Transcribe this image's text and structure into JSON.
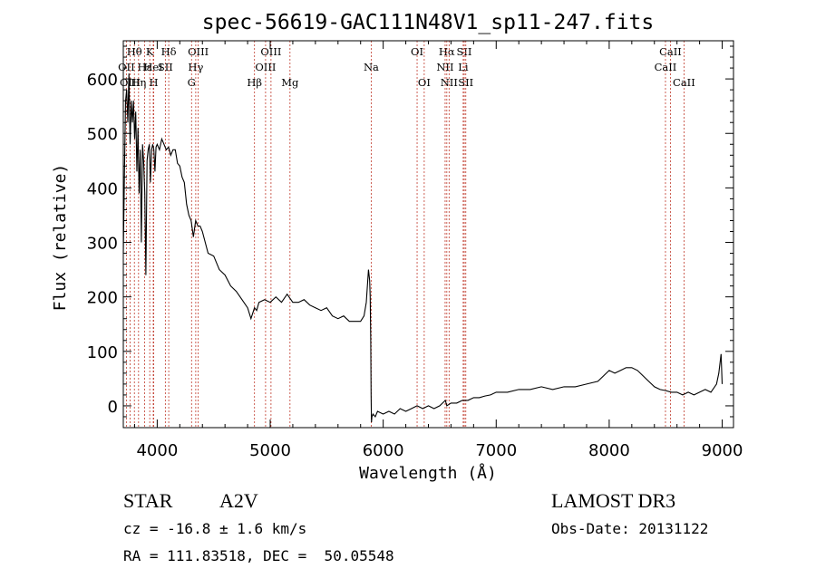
{
  "chart_data": {
    "type": "line",
    "title": "spec-56619-GAC111N48V1_sp11-247.fits",
    "xlabel": "Wavelength (Å)",
    "ylabel": "Flux (relative)",
    "xlim": [
      3700,
      9100
    ],
    "ylim": [
      -40,
      670
    ],
    "xticks": [
      4000,
      5000,
      6000,
      7000,
      8000,
      9000
    ],
    "yticks": [
      0,
      100,
      200,
      300,
      400,
      500,
      600
    ],
    "series": [
      {
        "name": "flux",
        "x": [
          3700,
          3710,
          3720,
          3730,
          3740,
          3750,
          3760,
          3770,
          3780,
          3790,
          3800,
          3810,
          3820,
          3830,
          3840,
          3850,
          3860,
          3870,
          3880,
          3890,
          3900,
          3910,
          3920,
          3930,
          3940,
          3950,
          3960,
          3970,
          3980,
          3990,
          4000,
          4020,
          4040,
          4060,
          4080,
          4100,
          4120,
          4140,
          4160,
          4180,
          4200,
          4220,
          4240,
          4260,
          4280,
          4300,
          4320,
          4340,
          4360,
          4380,
          4400,
          4450,
          4500,
          4550,
          4600,
          4650,
          4700,
          4750,
          4800,
          4830,
          4861,
          4880,
          4900,
          4950,
          5000,
          5050,
          5100,
          5150,
          5200,
          5250,
          5300,
          5350,
          5400,
          5450,
          5500,
          5550,
          5600,
          5650,
          5700,
          5750,
          5800,
          5830,
          5850,
          5870,
          5880,
          5885,
          5890,
          5893,
          5896,
          5900,
          5910,
          5930,
          5950,
          6000,
          6050,
          6100,
          6150,
          6200,
          6250,
          6300,
          6350,
          6400,
          6450,
          6500,
          6550,
          6563,
          6600,
          6650,
          6700,
          6750,
          6800,
          6850,
          6900,
          6950,
          7000,
          7100,
          7200,
          7300,
          7400,
          7500,
          7600,
          7700,
          7800,
          7900,
          8000,
          8050,
          8100,
          8150,
          8200,
          8250,
          8300,
          8350,
          8400,
          8450,
          8500,
          8550,
          8600,
          8650,
          8700,
          8750,
          8800,
          8850,
          8900,
          8950,
          8970,
          8990,
          9000
        ],
        "y": [
          280,
          420,
          560,
          580,
          520,
          610,
          480,
          560,
          520,
          560,
          490,
          540,
          430,
          510,
          390,
          470,
          300,
          480,
          450,
          390,
          240,
          450,
          470,
          480,
          410,
          470,
          480,
          470,
          430,
          475,
          480,
          470,
          490,
          480,
          470,
          475,
          460,
          470,
          470,
          445,
          440,
          420,
          410,
          370,
          350,
          340,
          310,
          340,
          330,
          330,
          320,
          280,
          275,
          250,
          240,
          220,
          210,
          195,
          180,
          160,
          180,
          175,
          190,
          195,
          190,
          200,
          190,
          205,
          190,
          190,
          195,
          185,
          180,
          175,
          180,
          165,
          160,
          165,
          155,
          155,
          155,
          165,
          190,
          250,
          230,
          200,
          120,
          20,
          -30,
          -20,
          -15,
          -20,
          -10,
          -15,
          -10,
          -15,
          -5,
          -10,
          -5,
          0,
          -5,
          0,
          -5,
          0,
          10,
          0,
          5,
          5,
          10,
          10,
          15,
          15,
          18,
          20,
          25,
          25,
          30,
          30,
          35,
          30,
          35,
          35,
          40,
          45,
          65,
          60,
          65,
          70,
          70,
          65,
          55,
          45,
          35,
          30,
          28,
          25,
          25,
          20,
          25,
          20,
          25,
          30,
          25,
          40,
          60,
          95,
          40
        ]
      }
    ],
    "line_markers": [
      {
        "label": "Hθ",
        "x": 3798,
        "row": 1
      },
      {
        "label": "OII",
        "x": 3727,
        "row": 2
      },
      {
        "label": "OIII",
        "x": 3760,
        "row": 3
      },
      {
        "label": "Hε",
        "x": 3889,
        "row": 2
      },
      {
        "label": "Hη",
        "x": 3835,
        "row": 3
      },
      {
        "label": "K",
        "x": 3934,
        "row": 1
      },
      {
        "label": "H",
        "x": 3969,
        "row": 3
      },
      {
        "label": "HeI",
        "x": 3965,
        "row": 2
      },
      {
        "label": "Hδ",
        "x": 4102,
        "row": 1
      },
      {
        "label": "SII",
        "x": 4072,
        "row": 2
      },
      {
        "label": "OIII",
        "x": 4363,
        "row": 1
      },
      {
        "label": "Hγ",
        "x": 4341,
        "row": 2
      },
      {
        "label": "G",
        "x": 4304,
        "row": 3
      },
      {
        "label": "Hβ",
        "x": 4861,
        "row": 3
      },
      {
        "label": "OIII",
        "x": 5007,
        "row": 1
      },
      {
        "label": "OIII",
        "x": 4959,
        "row": 2
      },
      {
        "label": "Mg",
        "x": 5175,
        "row": 3
      },
      {
        "label": "Na",
        "x": 5894,
        "row": 2
      },
      {
        "label": "OI",
        "x": 6300,
        "row": 1
      },
      {
        "label": "OI",
        "x": 6363,
        "row": 3
      },
      {
        "label": "Hα",
        "x": 6563,
        "row": 1
      },
      {
        "label": "NII",
        "x": 6548,
        "row": 2
      },
      {
        "label": "NII",
        "x": 6583,
        "row": 3
      },
      {
        "label": "SII",
        "x": 6717,
        "row": 1
      },
      {
        "label": "Li",
        "x": 6708,
        "row": 2
      },
      {
        "label": "SII",
        "x": 6731,
        "row": 3
      },
      {
        "label": "CaII",
        "x": 8542,
        "row": 1
      },
      {
        "label": "CaII",
        "x": 8498,
        "row": 2
      },
      {
        "label": "CaII",
        "x": 8662,
        "row": 3
      }
    ]
  },
  "info": {
    "object_class": "STAR",
    "subclass": "A2V",
    "survey": "LAMOST DR3",
    "redshift": "cz = -16.8 ± 1.6 km/s",
    "obs_date": "Obs-Date: 20131122",
    "coords": "RA = 111.83518, DEC =  50.05548"
  }
}
